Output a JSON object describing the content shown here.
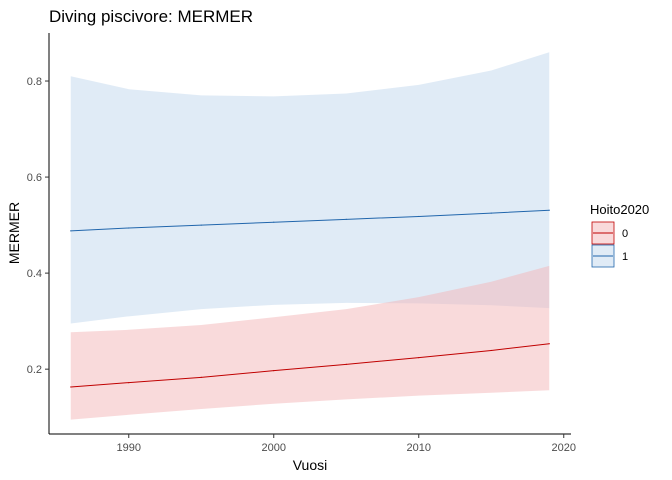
{
  "chart_data": {
    "type": "line",
    "title": "Diving piscivore: MERMER",
    "xlabel": "Vuosi",
    "ylabel": "MERMER",
    "xlim": [
      1984.5,
      2020.5
    ],
    "ylim": [
      0.065,
      0.9
    ],
    "xticks": [
      1990,
      2000,
      2010,
      2020
    ],
    "yticks": [
      0.2,
      0.4,
      0.6,
      0.8
    ],
    "ytick_labels": [
      "0.2",
      "0.4",
      "0.6",
      "0.8"
    ],
    "grid": false,
    "legend": {
      "title": "Hoito2020",
      "position": "right"
    },
    "x": [
      1986,
      1990,
      1995,
      2000,
      2005,
      2010,
      2015,
      2019
    ],
    "series": [
      {
        "name": "0",
        "color": "#C00000",
        "fill": "#F4B6B8",
        "fill_opacity": 0.5,
        "values": [
          0.163,
          0.172,
          0.183,
          0.197,
          0.21,
          0.224,
          0.239,
          0.253
        ],
        "lower": [
          0.095,
          0.105,
          0.117,
          0.128,
          0.137,
          0.145,
          0.151,
          0.156
        ],
        "upper": [
          0.277,
          0.282,
          0.292,
          0.308,
          0.325,
          0.35,
          0.382,
          0.415
        ]
      },
      {
        "name": "1",
        "color": "#2166AC",
        "fill": "#C6DBEF",
        "fill_opacity": 0.55,
        "values": [
          0.488,
          0.494,
          0.5,
          0.506,
          0.512,
          0.518,
          0.525,
          0.531
        ],
        "lower": [
          0.295,
          0.31,
          0.325,
          0.334,
          0.338,
          0.337,
          0.333,
          0.327
        ],
        "upper": [
          0.81,
          0.783,
          0.77,
          0.768,
          0.774,
          0.792,
          0.822,
          0.86
        ]
      }
    ]
  }
}
